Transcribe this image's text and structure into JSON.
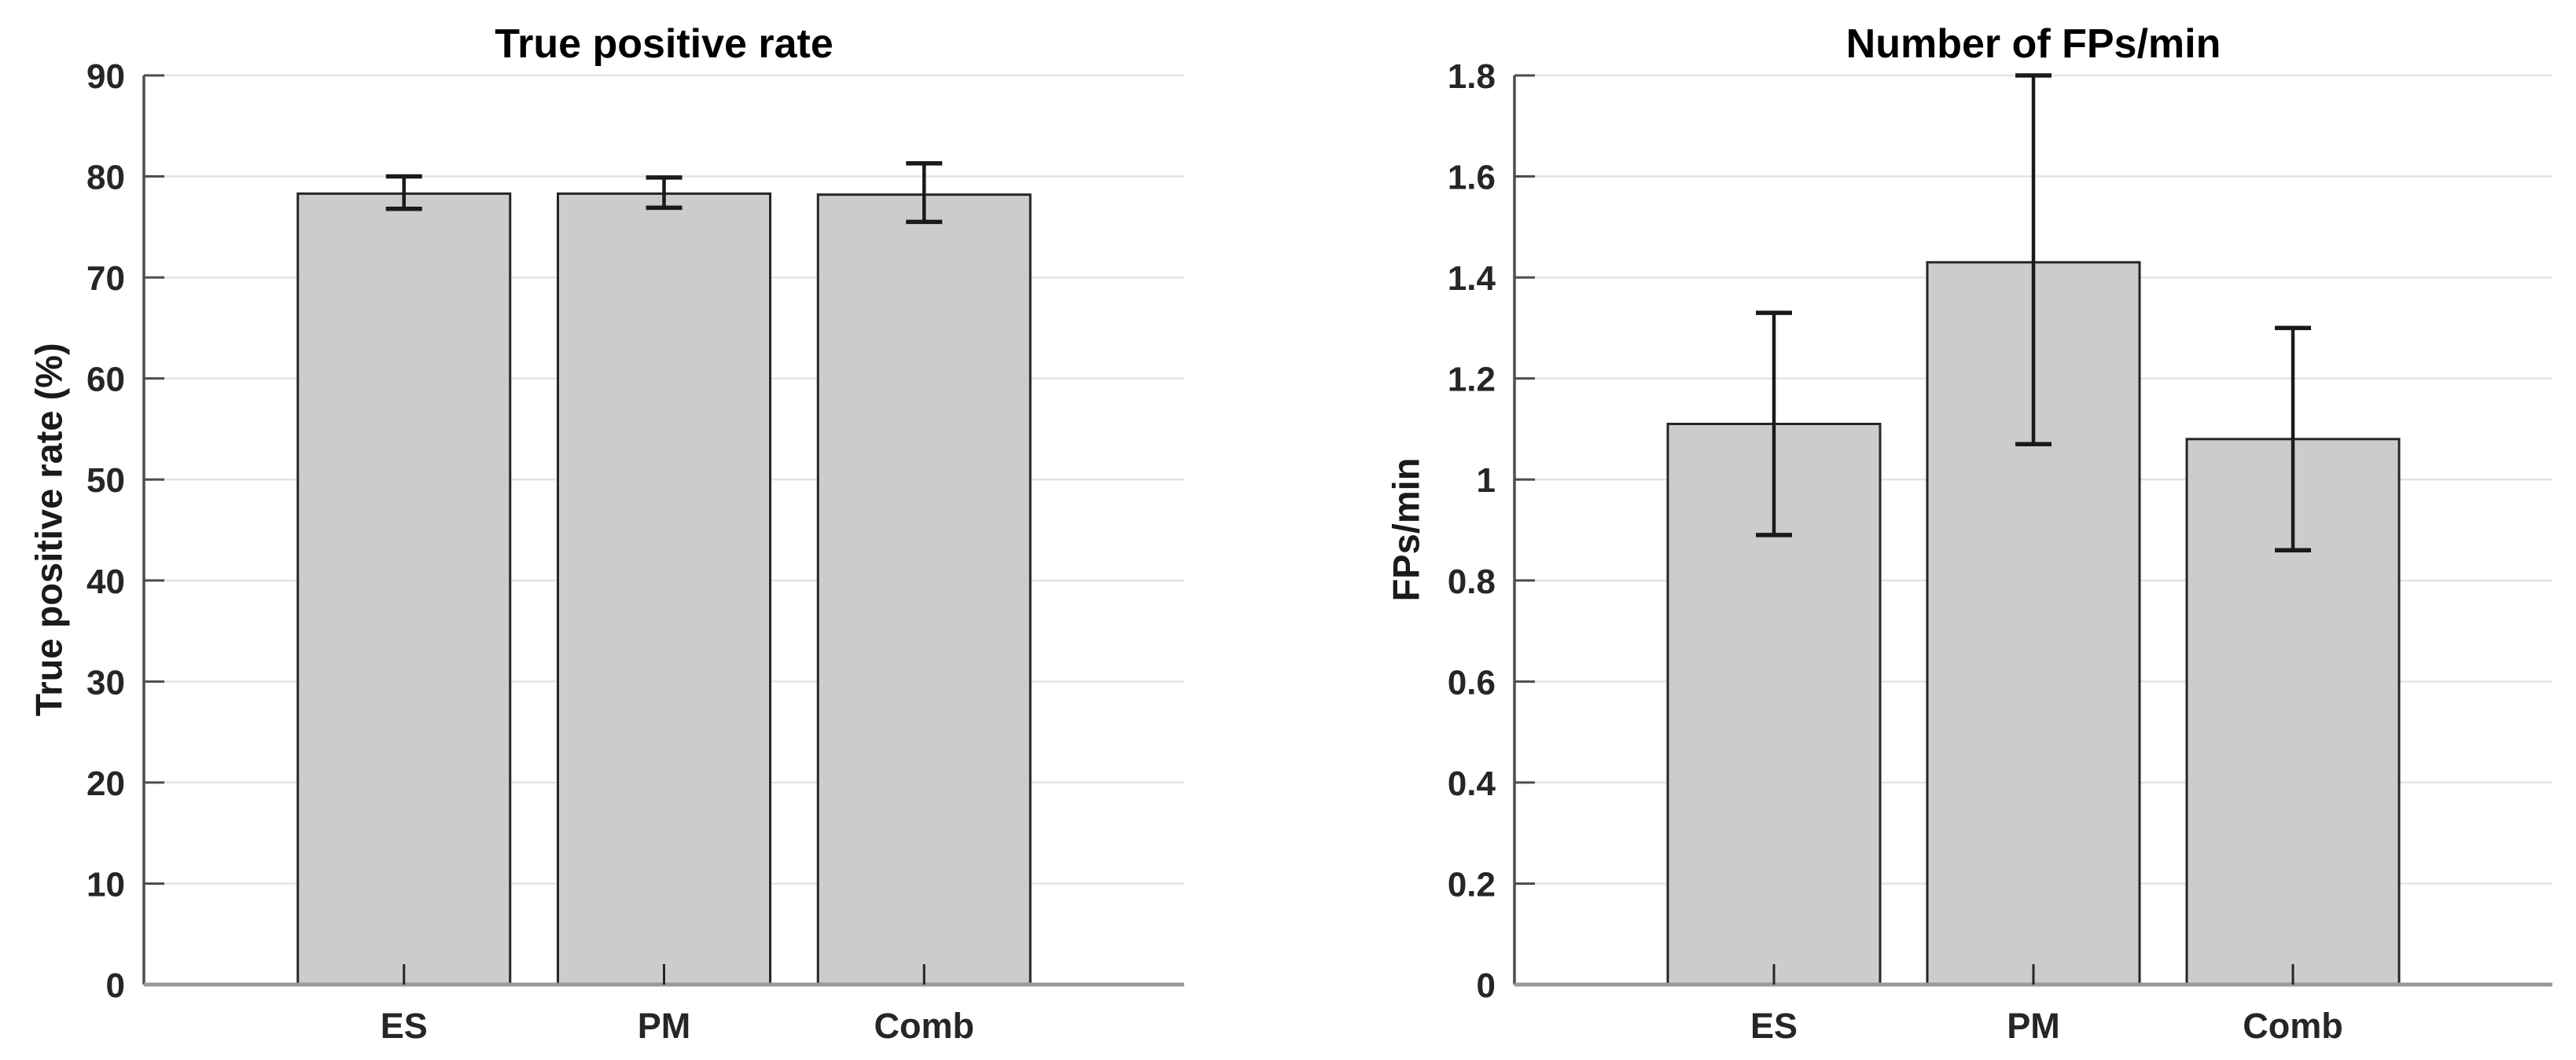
{
  "figure": {
    "background": "#ffffff"
  },
  "chart_data": [
    {
      "type": "bar",
      "title": "True positive rate",
      "ylabel": "True positive rate (%)",
      "xlabel": "",
      "categories": [
        "ES",
        "PM",
        "Comb"
      ],
      "values": [
        78.3,
        78.3,
        78.2
      ],
      "error_upper": [
        80.0,
        79.9,
        81.3
      ],
      "error_lower": [
        76.8,
        76.9,
        75.5
      ],
      "ylim": [
        0,
        90
      ],
      "yticks": [
        0,
        10,
        20,
        30,
        40,
        50,
        60,
        70,
        80,
        90
      ],
      "ytick_labels": [
        "0",
        "10",
        "20",
        "30",
        "40",
        "50",
        "60",
        "70",
        "80",
        "90"
      ],
      "grid": "horizontal",
      "legend": null
    },
    {
      "type": "bar",
      "title": "Number of FPs/min",
      "ylabel": "FPs/min",
      "xlabel": "",
      "categories": [
        "ES",
        "PM",
        "Comb"
      ],
      "values": [
        1.11,
        1.43,
        1.08
      ],
      "error_upper": [
        1.33,
        1.8,
        1.3
      ],
      "error_lower": [
        0.89,
        1.07,
        0.86
      ],
      "ylim": [
        0,
        1.8
      ],
      "yticks": [
        0,
        0.2,
        0.4,
        0.6,
        0.8,
        1,
        1.2,
        1.4,
        1.6,
        1.8
      ],
      "ytick_labels": [
        "0",
        "0.2",
        "0.4",
        "0.6",
        "0.8",
        "1",
        "1.2",
        "1.4",
        "1.6",
        "1.8"
      ],
      "grid": "horizontal",
      "legend": null
    }
  ],
  "style": {
    "bar_fill": "#cccccc",
    "bar_edge": "#262626",
    "error_color": "#1a1a1a",
    "grid_color": "#e3e3e3",
    "spine_color": "#4d4d4d",
    "baseline_color": "#999999",
    "tick_label_color": "#262626",
    "title_color": "#000000"
  }
}
